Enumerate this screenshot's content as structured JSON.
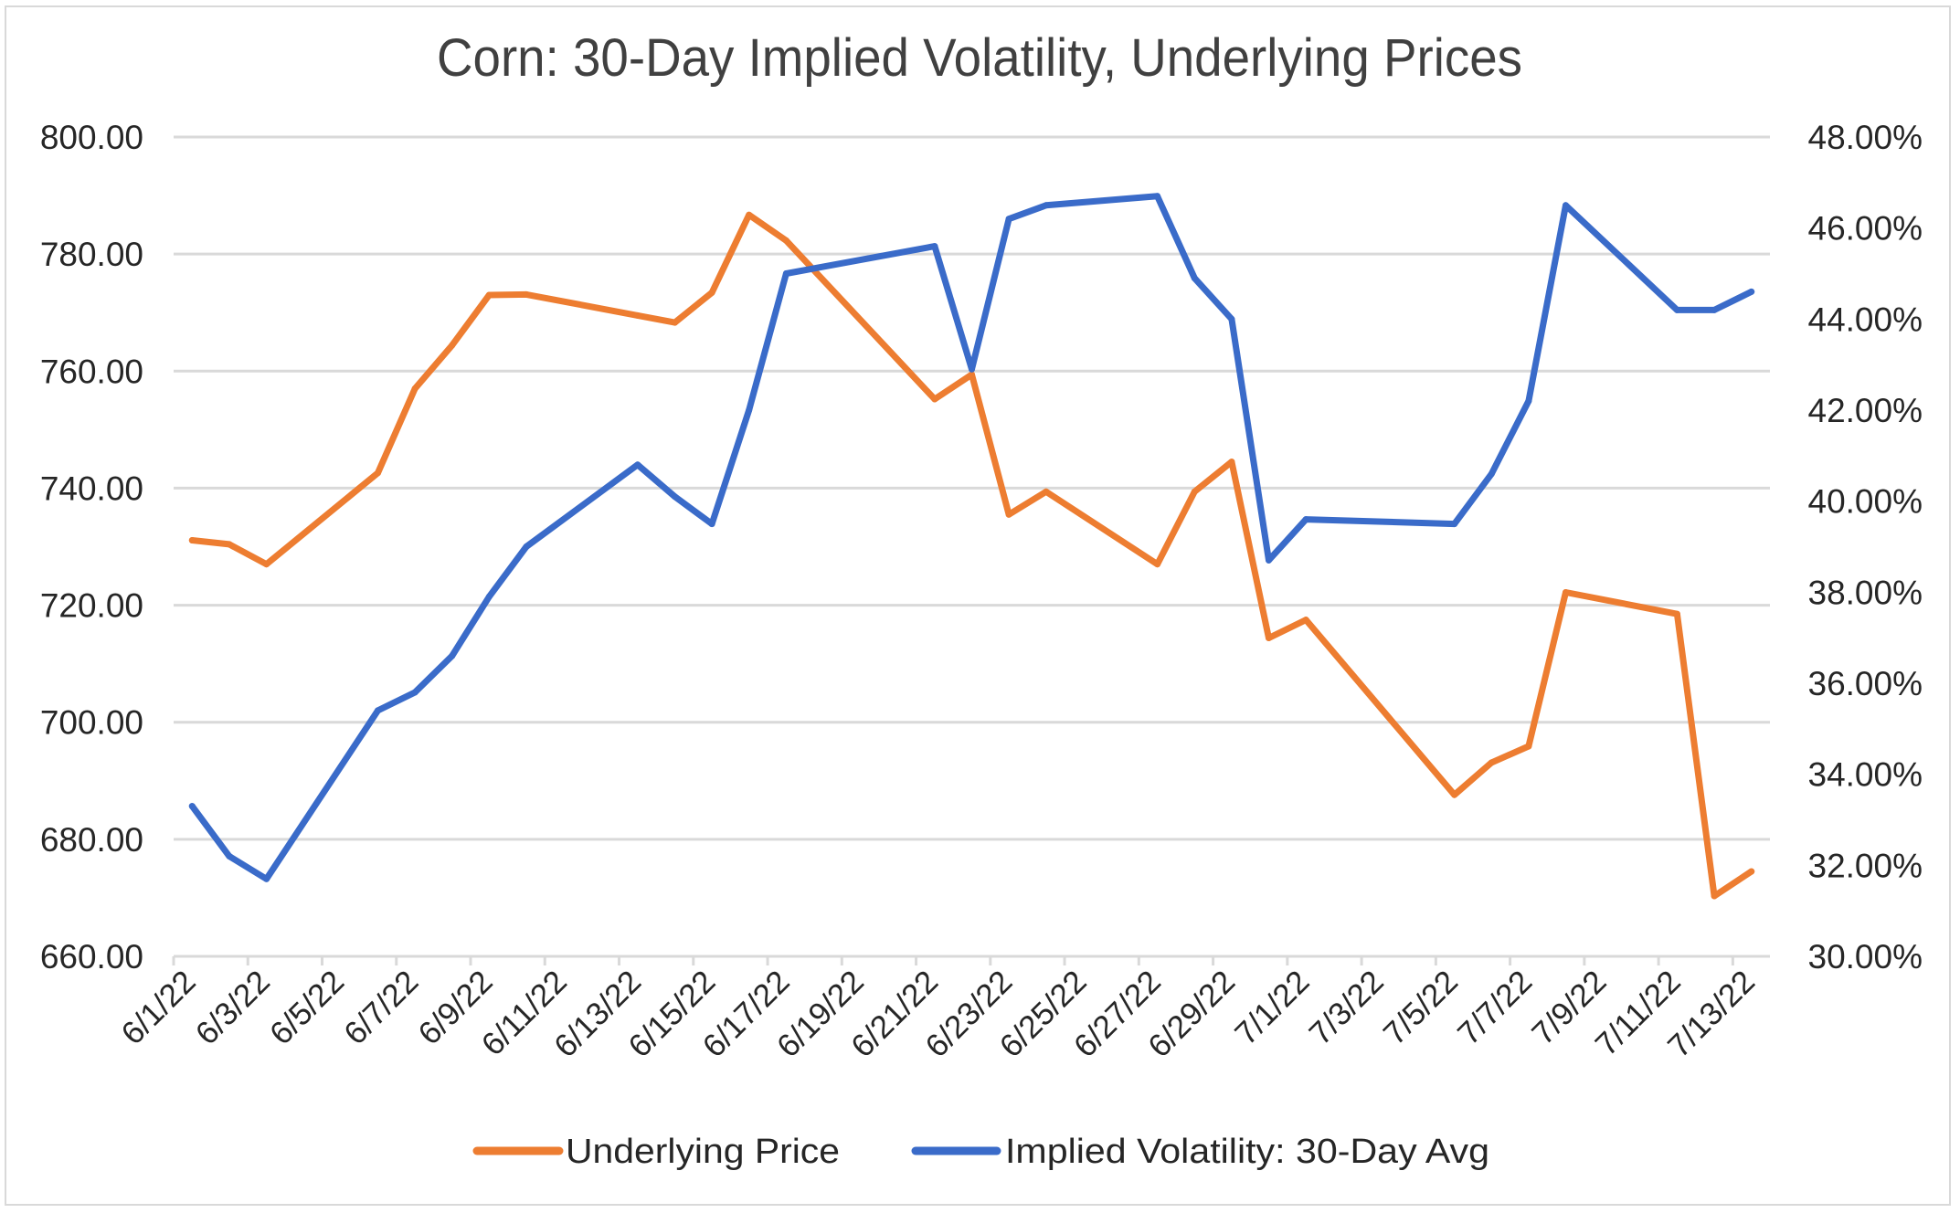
{
  "chart_data": {
    "type": "line",
    "title": "Corn: 30-Day Implied Volatility, Underlying Prices",
    "xlabel": "",
    "ylabel": "",
    "y2label": "",
    "x_axis": {
      "type": "date",
      "start": "6/1/22",
      "end": "7/14/22",
      "tick_interval_days": 2,
      "tick_labels": [
        "6/1/22",
        "6/3/22",
        "6/5/22",
        "6/7/22",
        "6/9/22",
        "6/11/22",
        "6/13/22",
        "6/15/22",
        "6/17/22",
        "6/19/22",
        "6/21/22",
        "6/23/22",
        "6/25/22",
        "6/27/22",
        "6/29/22",
        "7/1/22",
        "7/3/22",
        "7/5/22",
        "7/7/22",
        "7/9/22",
        "7/11/22",
        "7/13/22"
      ]
    },
    "y_axis_left": {
      "ylim": [
        660,
        800
      ],
      "tick_labels": [
        "800.00",
        "780.00",
        "760.00",
        "740.00",
        "720.00",
        "700.00",
        "680.00",
        "660.00"
      ],
      "ticks": [
        800,
        780,
        760,
        740,
        720,
        700,
        680,
        660
      ],
      "grid": true
    },
    "y_axis_right": {
      "ylim": [
        30,
        48
      ],
      "tick_labels": [
        "48.00%",
        "46.00%",
        "44.00%",
        "42.00%",
        "40.00%",
        "38.00%",
        "36.00%",
        "34.00%",
        "32.00%",
        "30.00%"
      ],
      "ticks": [
        48,
        46,
        44,
        42,
        40,
        38,
        36,
        34,
        32,
        30
      ]
    },
    "x": [
      "6/1/22",
      "6/2/22",
      "6/3/22",
      "6/6/22",
      "6/7/22",
      "6/8/22",
      "6/9/22",
      "6/10/22",
      "6/13/22",
      "6/14/22",
      "6/15/22",
      "6/16/22",
      "6/17/22",
      "6/21/22",
      "6/22/22",
      "6/23/22",
      "6/24/22",
      "6/27/22",
      "6/28/22",
      "6/29/22",
      "6/30/22",
      "7/1/22",
      "7/5/22",
      "7/6/22",
      "7/7/22",
      "7/8/22",
      "7/11/22",
      "7/12/22",
      "7/13/22"
    ],
    "day_offsets": [
      0,
      1,
      2,
      5,
      6,
      7,
      8,
      9,
      12,
      13,
      14,
      15,
      16,
      20,
      21,
      22,
      23,
      26,
      27,
      28,
      29,
      30,
      34,
      35,
      36,
      37,
      40,
      41,
      42
    ],
    "series": [
      {
        "name": "Underlying Price",
        "axis": "left",
        "color": "#ED7D31",
        "values": [
          731.1,
          730.4,
          727.0,
          742.6,
          757.0,
          764.4,
          773.0,
          773.1,
          769.5,
          768.3,
          773.4,
          786.7,
          782.3,
          755.2,
          759.4,
          735.5,
          739.4,
          727.0,
          739.4,
          744.5,
          714.4,
          717.5,
          687.6,
          693.1,
          695.9,
          722.2,
          718.5,
          670.3,
          674.5
        ]
      },
      {
        "name": "Implied Volatility: 30-Day Avg",
        "axis": "right",
        "color": "#3A6BC9",
        "values": [
          33.3,
          32.2,
          31.7,
          35.4,
          35.8,
          36.6,
          37.9,
          39.0,
          40.8,
          40.1,
          39.5,
          42.0,
          45.0,
          45.6,
          42.9,
          46.2,
          46.5,
          46.7,
          44.9,
          44.0,
          38.7,
          39.6,
          39.5,
          40.6,
          42.2,
          46.5,
          44.2,
          44.2,
          44.6
        ]
      }
    ],
    "legend": {
      "position": "bottom",
      "entries": [
        "Underlying Price",
        "Implied Volatility: 30-Day Avg"
      ]
    }
  }
}
